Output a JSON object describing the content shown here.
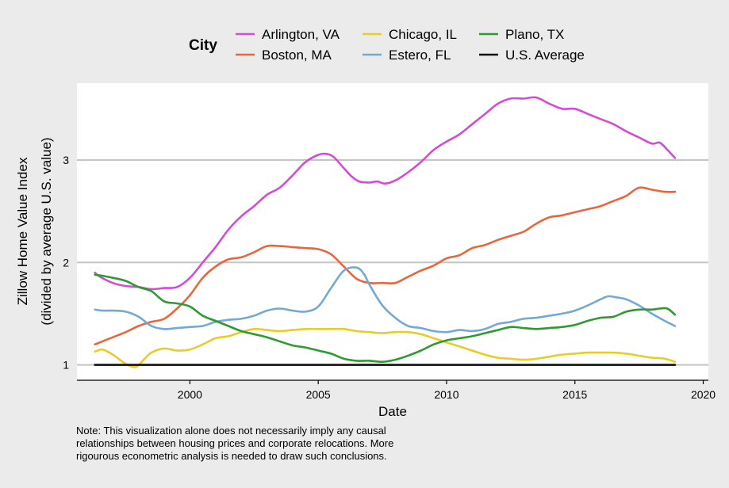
{
  "chart_data": {
    "type": "line",
    "title": "",
    "xlabel": "Date",
    "ylabel_lines": [
      "Zillow Home Value Index",
      "(divided by average U.S. value)"
    ],
    "x_ticks": [
      2000,
      2005,
      2010,
      2015,
      2020
    ],
    "y_ticks": [
      1,
      2,
      3
    ],
    "xlim": [
      1995.6,
      2020.2
    ],
    "ylim": [
      0.85,
      3.75
    ],
    "grid": "horizontal",
    "legend": {
      "title": "City",
      "placement": "top"
    },
    "series": [
      {
        "name": "Arlington, VA",
        "color": "#d44bd4",
        "x": [
          1996.3,
          1996.5,
          1997,
          1997.5,
          1998,
          1998.5,
          1999,
          1999.5,
          2000,
          2000.5,
          2001,
          2001.5,
          2002,
          2002.5,
          2003,
          2003.5,
          2004,
          2004.5,
          2005,
          2005.3,
          2005.6,
          2006,
          2006.3,
          2006.6,
          2007,
          2007.3,
          2007.6,
          2008,
          2008.5,
          2009,
          2009.5,
          2010,
          2010.5,
          2011,
          2011.5,
          2012,
          2012.5,
          2013,
          2013.5,
          2014,
          2014.5,
          2015,
          2015.5,
          2016,
          2016.5,
          2017,
          2017.5,
          2018,
          2018.3,
          2018.6,
          2018.9
        ],
        "y": [
          1.9,
          1.86,
          1.8,
          1.77,
          1.76,
          1.74,
          1.75,
          1.76,
          1.85,
          2.0,
          2.15,
          2.32,
          2.45,
          2.55,
          2.66,
          2.73,
          2.85,
          2.98,
          3.05,
          3.06,
          3.03,
          2.92,
          2.84,
          2.79,
          2.78,
          2.79,
          2.77,
          2.8,
          2.88,
          2.98,
          3.1,
          3.18,
          3.25,
          3.35,
          3.45,
          3.55,
          3.6,
          3.6,
          3.61,
          3.55,
          3.5,
          3.5,
          3.45,
          3.4,
          3.35,
          3.28,
          3.22,
          3.16,
          3.17,
          3.1,
          3.02
        ]
      },
      {
        "name": "Boston, MA",
        "color": "#e8663d",
        "x": [
          1996.3,
          1996.5,
          1997,
          1997.5,
          1998,
          1998.5,
          1999,
          1999.5,
          2000,
          2000.5,
          2001,
          2001.5,
          2002,
          2002.5,
          2003,
          2003.5,
          2004,
          2004.5,
          2005,
          2005.5,
          2006,
          2006.5,
          2007,
          2007.5,
          2008,
          2008.5,
          2009,
          2009.5,
          2010,
          2010.5,
          2011,
          2011.5,
          2012,
          2012.5,
          2013,
          2013.5,
          2014,
          2014.5,
          2015,
          2015.5,
          2016,
          2016.5,
          2017,
          2017.5,
          2018,
          2018.5,
          2018.9
        ],
        "y": [
          1.2,
          1.22,
          1.27,
          1.32,
          1.38,
          1.42,
          1.45,
          1.55,
          1.68,
          1.85,
          1.96,
          2.03,
          2.05,
          2.1,
          2.16,
          2.16,
          2.15,
          2.14,
          2.13,
          2.08,
          1.96,
          1.84,
          1.8,
          1.8,
          1.8,
          1.86,
          1.92,
          1.97,
          2.04,
          2.07,
          2.14,
          2.17,
          2.22,
          2.26,
          2.3,
          2.38,
          2.44,
          2.46,
          2.49,
          2.52,
          2.55,
          2.6,
          2.65,
          2.73,
          2.71,
          2.69,
          2.69
        ]
      },
      {
        "name": "Chicago, IL",
        "color": "#e8cc2a",
        "x": [
          1996.3,
          1996.6,
          1997,
          1997.5,
          1997.9,
          1998.2,
          1998.5,
          1999,
          1999.5,
          2000,
          2000.5,
          2001,
          2001.5,
          2002,
          2002.5,
          2003,
          2003.5,
          2004,
          2004.5,
          2005,
          2005.5,
          2006,
          2006.5,
          2007,
          2007.5,
          2008,
          2008.5,
          2009,
          2009.5,
          2010,
          2010.5,
          2011,
          2011.5,
          2012,
          2012.5,
          2013,
          2013.5,
          2014,
          2014.5,
          2015,
          2015.5,
          2016,
          2016.5,
          2017,
          2017.5,
          2018,
          2018.5,
          2018.9
        ],
        "y": [
          1.13,
          1.15,
          1.1,
          1.01,
          0.98,
          1.05,
          1.12,
          1.16,
          1.14,
          1.15,
          1.2,
          1.26,
          1.28,
          1.32,
          1.35,
          1.34,
          1.33,
          1.34,
          1.35,
          1.35,
          1.35,
          1.35,
          1.33,
          1.32,
          1.31,
          1.32,
          1.32,
          1.3,
          1.26,
          1.22,
          1.18,
          1.14,
          1.1,
          1.07,
          1.06,
          1.05,
          1.06,
          1.08,
          1.1,
          1.11,
          1.12,
          1.12,
          1.12,
          1.11,
          1.09,
          1.07,
          1.06,
          1.03
        ]
      },
      {
        "name": "Estero, FL",
        "color": "#74a9d4",
        "x": [
          1996.3,
          1996.6,
          1997,
          1997.5,
          1998,
          1998.5,
          1999,
          1999.5,
          2000,
          2000.5,
          2001,
          2001.5,
          2002,
          2002.5,
          2003,
          2003.5,
          2004,
          2004.5,
          2005,
          2005.5,
          2006,
          2006.5,
          2006.8,
          2007,
          2007.5,
          2008,
          2008.5,
          2009,
          2009.5,
          2010,
          2010.5,
          2011,
          2011.5,
          2012,
          2012.5,
          2013,
          2013.5,
          2014,
          2014.5,
          2015,
          2015.5,
          2016,
          2016.3,
          2016.6,
          2017,
          2017.5,
          2018,
          2018.5,
          2018.9
        ],
        "y": [
          1.54,
          1.53,
          1.53,
          1.52,
          1.47,
          1.38,
          1.35,
          1.36,
          1.37,
          1.38,
          1.42,
          1.44,
          1.45,
          1.48,
          1.53,
          1.55,
          1.53,
          1.52,
          1.57,
          1.75,
          1.92,
          1.95,
          1.88,
          1.78,
          1.58,
          1.46,
          1.38,
          1.36,
          1.33,
          1.32,
          1.34,
          1.33,
          1.35,
          1.4,
          1.42,
          1.45,
          1.46,
          1.48,
          1.5,
          1.53,
          1.58,
          1.64,
          1.67,
          1.66,
          1.64,
          1.58,
          1.5,
          1.43,
          1.38
        ]
      },
      {
        "name": "Plano, TX",
        "color": "#2f9a2f",
        "x": [
          1996.3,
          1996.6,
          1997,
          1997.5,
          1998,
          1998.5,
          1999,
          1999.5,
          2000,
          2000.5,
          2001,
          2001.5,
          2002,
          2002.5,
          2003,
          2003.5,
          2004,
          2004.5,
          2005,
          2005.5,
          2006,
          2006.5,
          2007,
          2007.5,
          2008,
          2008.5,
          2009,
          2009.5,
          2010,
          2010.5,
          2011,
          2011.5,
          2012,
          2012.5,
          2013,
          2013.5,
          2014,
          2014.5,
          2015,
          2015.5,
          2016,
          2016.5,
          2017,
          2017.5,
          2018,
          2018.3,
          2018.6,
          2018.9
        ],
        "y": [
          1.88,
          1.87,
          1.85,
          1.82,
          1.76,
          1.72,
          1.62,
          1.6,
          1.57,
          1.48,
          1.43,
          1.38,
          1.33,
          1.3,
          1.27,
          1.23,
          1.19,
          1.17,
          1.14,
          1.11,
          1.06,
          1.04,
          1.04,
          1.03,
          1.05,
          1.09,
          1.14,
          1.2,
          1.24,
          1.26,
          1.28,
          1.31,
          1.34,
          1.37,
          1.36,
          1.35,
          1.36,
          1.37,
          1.39,
          1.43,
          1.46,
          1.47,
          1.52,
          1.54,
          1.54,
          1.55,
          1.55,
          1.49
        ]
      },
      {
        "name": "U.S. Average",
        "color": "#111111",
        "x": [
          1996.3,
          2018.9
        ],
        "y": [
          1,
          1
        ]
      }
    ],
    "note_lines": [
      "Note: This visualization alone does not necessarily imply any causal",
      "relationships between housing prices and corporate relocations. More",
      "rigourous econometric analysis is needed to draw such conclusions."
    ]
  }
}
